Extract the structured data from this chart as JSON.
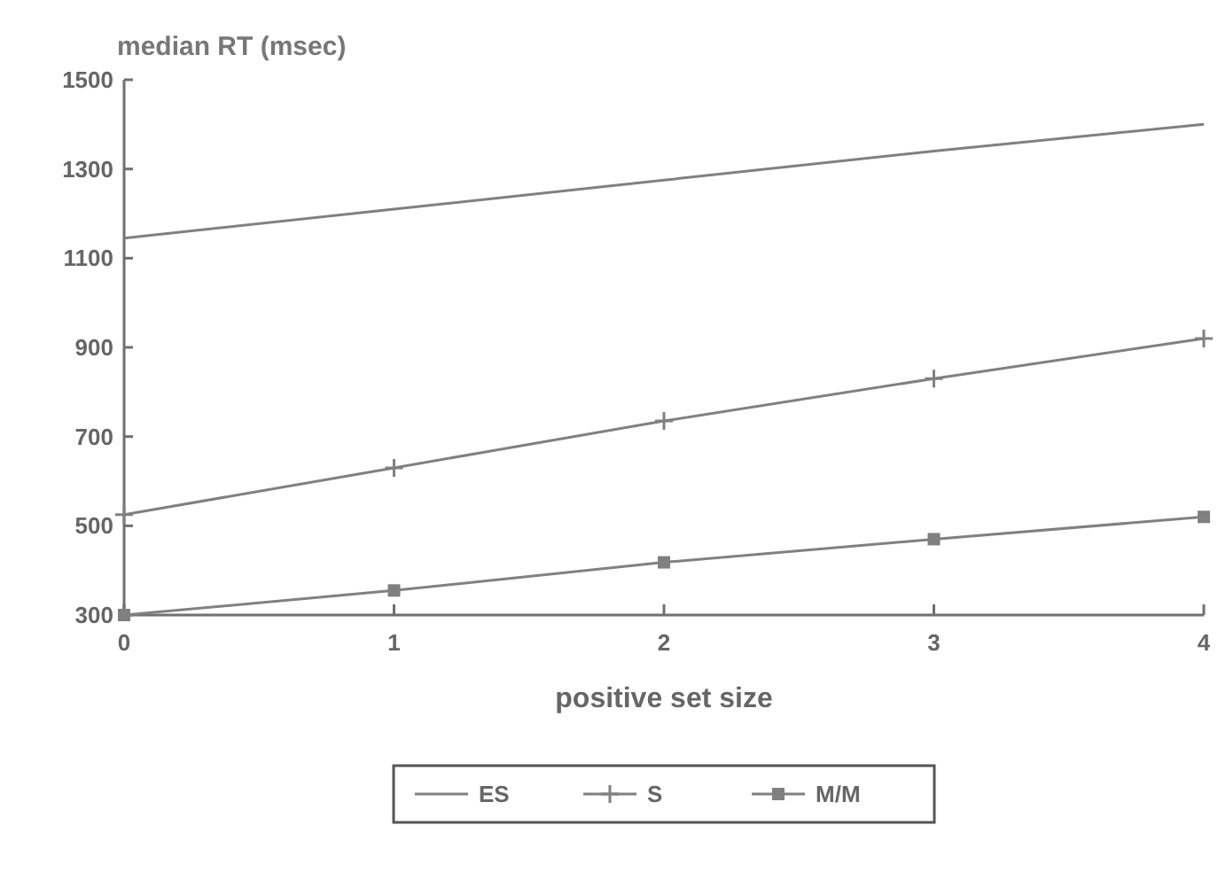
{
  "chart_data": {
    "type": "line",
    "ylabel": "median RT (msec)",
    "xlabel": "positive set size",
    "x": [
      0,
      1,
      2,
      3,
      4
    ],
    "xlim": [
      0,
      4
    ],
    "xticks": [
      0,
      1,
      2,
      3,
      4
    ],
    "ylim": [
      300,
      1500
    ],
    "yticks": [
      300,
      500,
      700,
      900,
      1100,
      1300,
      1500
    ],
    "grid": false,
    "legend": "bottom",
    "series": [
      {
        "name": "ES",
        "color": "#808080",
        "marker": "none",
        "values": [
          1145,
          1210,
          1275,
          1340,
          1400
        ]
      },
      {
        "name": "S",
        "color": "#808080",
        "marker": "cross",
        "values": [
          525,
          630,
          735,
          830,
          920
        ]
      },
      {
        "name": "M/M",
        "color": "#808080",
        "marker": "square",
        "values": [
          300,
          355,
          418,
          470,
          520
        ]
      }
    ]
  }
}
